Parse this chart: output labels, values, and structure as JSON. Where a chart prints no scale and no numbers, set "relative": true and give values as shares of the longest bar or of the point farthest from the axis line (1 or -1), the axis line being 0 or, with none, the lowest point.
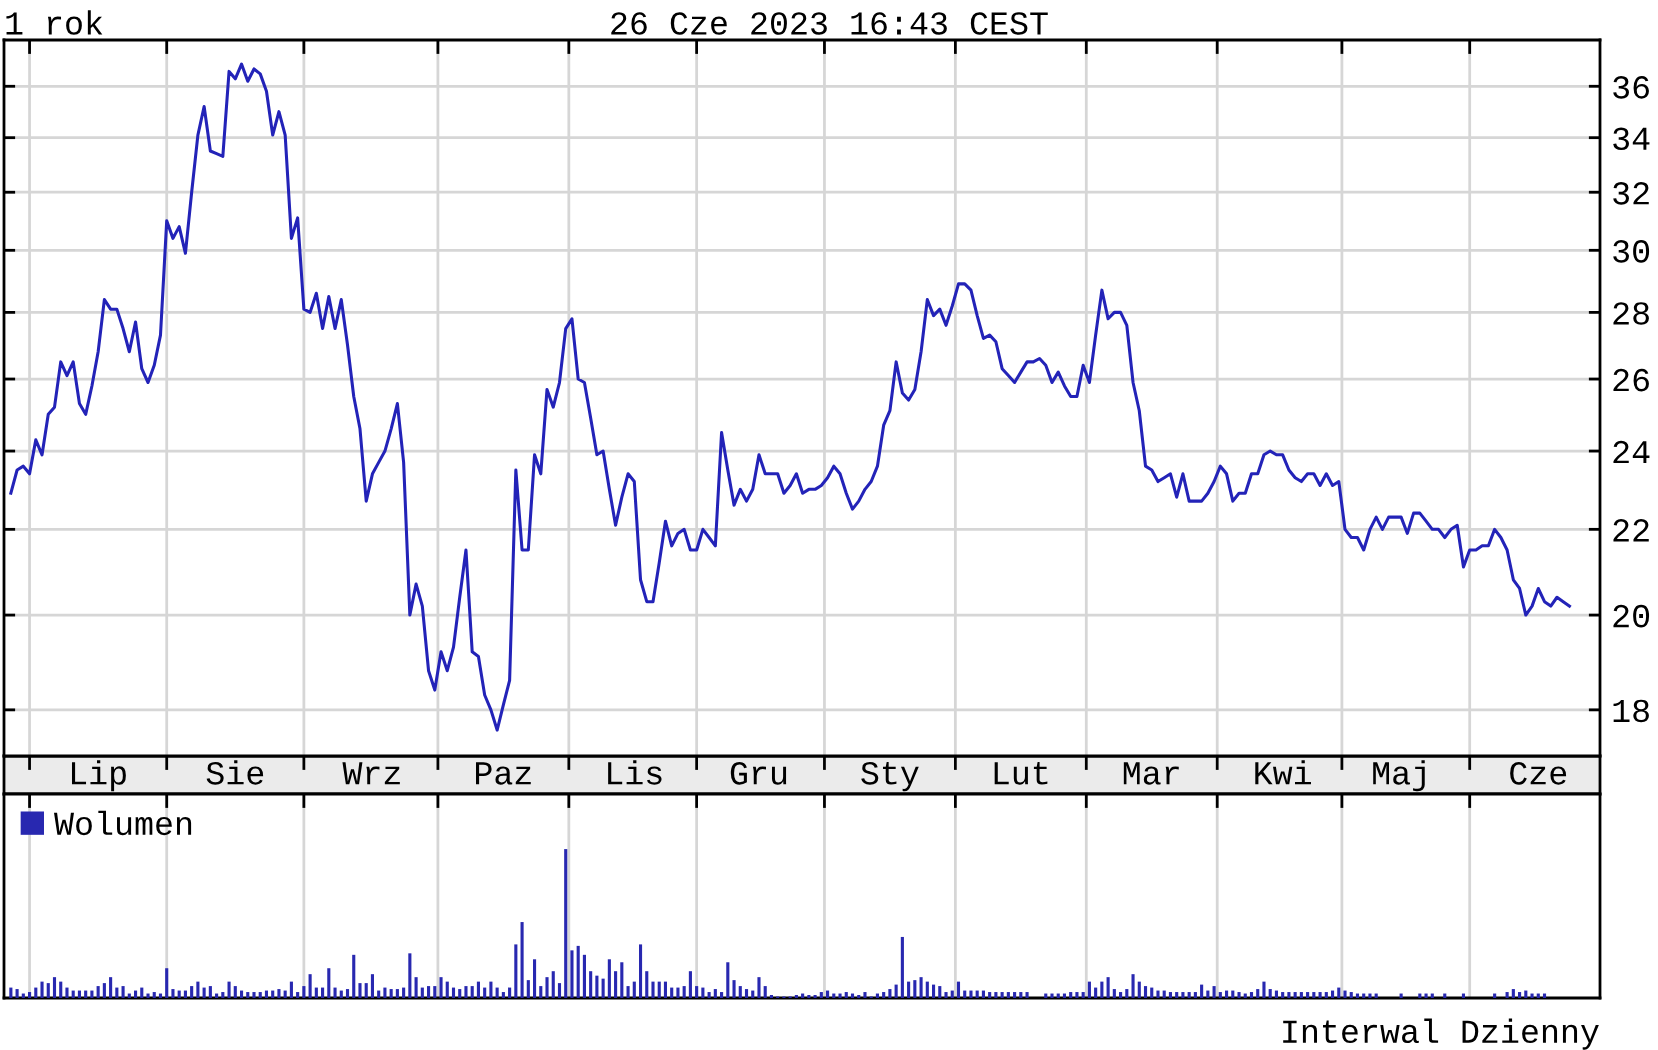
{
  "chart_data": [
    {
      "type": "line",
      "title": "1 rok",
      "subtitle": "26 Cze 2023 16:43 CEST",
      "categories": [
        null,
        null,
        null,
        null,
        null,
        null,
        null,
        null,
        null,
        null,
        null,
        null,
        null,
        null,
        "Lip",
        null,
        null,
        null,
        null,
        null,
        null,
        null,
        null,
        null,
        null,
        null,
        null,
        null,
        null,
        null,
        null,
        null,
        null,
        null,
        null,
        null,
        "Sie",
        null,
        null,
        null,
        null,
        null,
        null,
        null,
        null,
        null,
        null,
        null,
        null,
        null,
        null,
        null,
        null,
        null,
        null,
        null,
        null,
        null,
        "Wrz",
        null,
        null,
        null,
        null,
        null,
        null,
        null,
        null,
        null,
        null,
        null,
        null,
        null,
        null,
        null,
        null,
        null,
        null,
        null,
        null,
        "Paz",
        null,
        null,
        null,
        null,
        null,
        null,
        null,
        null,
        null,
        null,
        null,
        null,
        null,
        null,
        null,
        null,
        null,
        null,
        null,
        null,
        "Lis",
        null,
        null,
        null,
        null,
        null,
        null,
        null,
        null,
        null,
        null,
        null,
        null,
        null,
        null,
        null,
        null,
        null,
        null,
        null,
        "Gru",
        null,
        null,
        null,
        null,
        null,
        null,
        null,
        null,
        null,
        null,
        null,
        null,
        null,
        null,
        null,
        null,
        null,
        null,
        null,
        null,
        "Sty",
        null,
        null,
        null,
        null,
        null,
        null,
        null,
        null,
        null,
        null,
        null,
        null,
        null,
        null,
        null,
        null,
        null,
        null,
        null,
        null,
        "Lut",
        null,
        null,
        null,
        null,
        null,
        null,
        null,
        null,
        null,
        null,
        null,
        null,
        null,
        null,
        null,
        null,
        null,
        null,
        null,
        null,
        "Mar",
        null,
        null,
        null,
        null,
        null,
        null,
        null,
        null,
        null,
        null,
        null,
        null,
        null,
        null,
        null,
        null,
        null,
        null,
        null,
        null,
        "Kwi",
        null,
        null,
        null,
        null,
        null,
        null,
        null,
        null,
        null,
        null,
        null,
        null,
        null,
        null,
        null,
        null,
        null,
        null,
        "Maj",
        null,
        null,
        null,
        null,
        null,
        null,
        null,
        null,
        null,
        null,
        null,
        null,
        null,
        null,
        null,
        null,
        null,
        null,
        null,
        null,
        null,
        "Cze",
        null,
        null,
        null,
        null,
        null
      ],
      "ylim": [
        17.1,
        37.9
      ],
      "yticks": [
        18,
        20,
        22,
        24,
        26,
        28,
        30,
        32,
        34,
        36
      ],
      "log": true,
      "grid": true,
      "series": [
        {
          "color": "#2323b8",
          "values": [
            22.9,
            23.5,
            23.6,
            23.4,
            24.3,
            23.9,
            25.0,
            25.2,
            26.5,
            26.1,
            26.5,
            25.3,
            25.0,
            25.8,
            26.8,
            28.4,
            28.1,
            28.1,
            27.5,
            26.8,
            27.7,
            26.3,
            25.9,
            26.4,
            27.3,
            31.0,
            30.4,
            30.8,
            29.9,
            32.0,
            34.1,
            35.2,
            33.5,
            33.4,
            33.3,
            36.6,
            36.3,
            36.9,
            36.2,
            36.7,
            36.5,
            35.8,
            34.1,
            35.0,
            34.1,
            30.4,
            31.1,
            28.1,
            28.0,
            28.6,
            27.5,
            28.5,
            27.5,
            28.4,
            27.0,
            25.5,
            24.6,
            22.7,
            23.4,
            23.7,
            24.0,
            24.6,
            25.3,
            23.7,
            20.0,
            20.7,
            20.2,
            18.8,
            18.4,
            19.2,
            18.8,
            19.3,
            20.4,
            21.5,
            19.2,
            19.1,
            18.3,
            18.0,
            17.6,
            18.1,
            18.6,
            23.5,
            21.5,
            21.5,
            23.9,
            23.4,
            25.7,
            25.2,
            25.9,
            27.5,
            27.8,
            26.0,
            25.9,
            24.9,
            23.9,
            24.0,
            23.0,
            22.1,
            22.8,
            23.4,
            23.2,
            20.8,
            20.3,
            20.3,
            21.2,
            22.2,
            21.6,
            21.9,
            22.0,
            21.5,
            21.5,
            22.0,
            21.8,
            21.6,
            24.5,
            23.5,
            22.6,
            23.0,
            22.7,
            23.0,
            23.9,
            23.4,
            23.4,
            23.4,
            22.9,
            23.1,
            23.4,
            22.9,
            23.0,
            23.0,
            23.1,
            23.3,
            23.6,
            23.4,
            22.9,
            22.5,
            22.7,
            23.0,
            23.2,
            23.6,
            24.7,
            25.1,
            26.5,
            25.6,
            25.4,
            25.7,
            26.8,
            28.4,
            27.9,
            28.1,
            27.6,
            28.2,
            28.9,
            28.9,
            28.7,
            27.9,
            27.2,
            27.3,
            27.1,
            26.3,
            26.1,
            25.9,
            26.2,
            26.5,
            26.5,
            26.6,
            26.4,
            25.9,
            26.2,
            25.8,
            25.5,
            25.5,
            26.4,
            25.9,
            27.3,
            28.7,
            27.8,
            28.0,
            28.0,
            27.6,
            25.9,
            25.1,
            23.6,
            23.5,
            23.2,
            23.3,
            23.4,
            22.8,
            23.4,
            22.7,
            22.7,
            22.7,
            22.9,
            23.2,
            23.6,
            23.4,
            22.7,
            22.9,
            22.9,
            23.4,
            23.4,
            23.9,
            24.0,
            23.9,
            23.9,
            23.5,
            23.3,
            23.2,
            23.4,
            23.4,
            23.1,
            23.4,
            23.1,
            23.2,
            22.0,
            21.8,
            21.8,
            21.5,
            22.0,
            22.3,
            22.0,
            22.3,
            22.3,
            22.3,
            21.9,
            22.4,
            22.4,
            22.2,
            22.0,
            22.0,
            21.8,
            22.0,
            22.1,
            21.1,
            21.5,
            21.5,
            21.6,
            21.6,
            22.0,
            21.8,
            21.5,
            20.8,
            20.6,
            20.0,
            20.2,
            20.6,
            20.3,
            20.2,
            20.4,
            20.3,
            20.2
          ]
        }
      ]
    },
    {
      "type": "bar",
      "relative": true,
      "legend": "top left",
      "grid": "x",
      "annotations": [
        "Interwal Dzienny"
      ],
      "categories": [
        null,
        null,
        null,
        null,
        null,
        null,
        null,
        null,
        null,
        null,
        null,
        null,
        null,
        null,
        null,
        null,
        null,
        null,
        null,
        null,
        null,
        null,
        null,
        null,
        null,
        null,
        null,
        null,
        null,
        null,
        null,
        null,
        null,
        null,
        null,
        null,
        null,
        null,
        null,
        null,
        null,
        null,
        null,
        null,
        null,
        null,
        null,
        null,
        null,
        null,
        null,
        null,
        null,
        null,
        null,
        null,
        null,
        null,
        null,
        null,
        null,
        null,
        null,
        null,
        null,
        null,
        null,
        null,
        null,
        null,
        null,
        null,
        null,
        null,
        null,
        null,
        null,
        null,
        null,
        null,
        null,
        null,
        null,
        null,
        null,
        null,
        null,
        null,
        null,
        null,
        null,
        null,
        null,
        null,
        null,
        null,
        null,
        null,
        null,
        null,
        null,
        null,
        null,
        null,
        null,
        null,
        null,
        null,
        null,
        null,
        null,
        null,
        null,
        null,
        null,
        null,
        null,
        null,
        null,
        null,
        null,
        null,
        null,
        null,
        null,
        null,
        null,
        null,
        null,
        null,
        null,
        null,
        null,
        null,
        null,
        null,
        null,
        null,
        null,
        null,
        null,
        null,
        null,
        null,
        null,
        null,
        null,
        null,
        null,
        null,
        null,
        null,
        null,
        null,
        null,
        null,
        null,
        null,
        null,
        null,
        null,
        null,
        null,
        null,
        null,
        null,
        null,
        null,
        null,
        null,
        null,
        null,
        null,
        null,
        null,
        null,
        null,
        null,
        null,
        null,
        null,
        null,
        null,
        null,
        null,
        null,
        null,
        null,
        null,
        null,
        null,
        null,
        null,
        null,
        null,
        null,
        null,
        null,
        null,
        null,
        null,
        null,
        null,
        null,
        null,
        null,
        null,
        null,
        null,
        null,
        null,
        null,
        null,
        null,
        null,
        null,
        null,
        null,
        null,
        null,
        null,
        null,
        null,
        null,
        null,
        null,
        null,
        null,
        null,
        null,
        null,
        null,
        null,
        null,
        null,
        null,
        null,
        null,
        null,
        null,
        null,
        null,
        null,
        null,
        null,
        null,
        null,
        null,
        null,
        null,
        null
      ],
      "series": [
        {
          "name": "Wolumen",
          "color": "#2828b0",
          "values": [
            0.07,
            0.06,
            0.03,
            0.04,
            0.07,
            0.11,
            0.1,
            0.14,
            0.11,
            0.07,
            0.05,
            0.05,
            0.05,
            0.05,
            0.08,
            0.1,
            0.14,
            0.07,
            0.08,
            0.03,
            0.05,
            0.07,
            0.03,
            0.04,
            0.03,
            0.2,
            0.06,
            0.05,
            0.05,
            0.08,
            0.11,
            0.07,
            0.08,
            0.03,
            0.04,
            0.11,
            0.08,
            0.05,
            0.04,
            0.04,
            0.04,
            0.05,
            0.05,
            0.06,
            0.05,
            0.11,
            0.04,
            0.08,
            0.16,
            0.07,
            0.07,
            0.2,
            0.07,
            0.05,
            0.06,
            0.29,
            0.1,
            0.1,
            0.16,
            0.05,
            0.07,
            0.06,
            0.06,
            0.07,
            0.3,
            0.14,
            0.07,
            0.08,
            0.08,
            0.14,
            0.11,
            0.07,
            0.06,
            0.08,
            0.08,
            0.11,
            0.07,
            0.11,
            0.07,
            0.04,
            0.07,
            0.36,
            0.51,
            0.12,
            0.26,
            0.08,
            0.14,
            0.18,
            0.1,
            1,
            0.32,
            0.35,
            0.29,
            0.18,
            0.15,
            0.13,
            0.26,
            0.18,
            0.24,
            0.08,
            0.11,
            0.36,
            0.18,
            0.11,
            0.11,
            0.11,
            0.07,
            0.07,
            0.08,
            0.18,
            0.08,
            0.07,
            0.04,
            0.06,
            0.04,
            0.24,
            0.12,
            0.08,
            0.06,
            0.05,
            0.14,
            0.08,
            0.02,
            0.01,
            0.01,
            0.01,
            0.02,
            0.03,
            0.02,
            0.02,
            0.04,
            0.05,
            0.03,
            0.03,
            0.04,
            0.03,
            0.02,
            0.04,
            0.01,
            0.03,
            0.04,
            0.06,
            0.09,
            0.41,
            0.11,
            0.12,
            0.14,
            0.11,
            0.09,
            0.08,
            0.04,
            0.05,
            0.11,
            0.05,
            0.05,
            0.05,
            0.05,
            0.04,
            0.04,
            0.04,
            0.04,
            0.04,
            0.04,
            0.04,
            null,
            null,
            0.03,
            0.03,
            0.03,
            0.03,
            0.04,
            0.04,
            0.04,
            0.11,
            0.07,
            0.11,
            0.14,
            0.06,
            0.04,
            0.06,
            0.16,
            0.11,
            0.08,
            0.07,
            0.05,
            0.05,
            0.04,
            0.04,
            0.04,
            0.04,
            0.04,
            0.09,
            0.05,
            0.08,
            0.04,
            0.05,
            0.05,
            0.04,
            0.03,
            0.04,
            0.06,
            0.11,
            0.06,
            0.05,
            0.04,
            0.04,
            0.04,
            0.04,
            0.04,
            0.04,
            0.04,
            0.04,
            0.05,
            0.07,
            0.05,
            0.04,
            0.03,
            0.03,
            0.03,
            0.03,
            null,
            null,
            null,
            0.03,
            null,
            null,
            0.03,
            0.03,
            0.03,
            null,
            0.03,
            null,
            null,
            0.03,
            null,
            null,
            null,
            null,
            0.03,
            null,
            0.04,
            0.06,
            0.04,
            0.05,
            0.03,
            0.03,
            0.03,
            null,
            null,
            null,
            null
          ]
        }
      ]
    }
  ]
}
